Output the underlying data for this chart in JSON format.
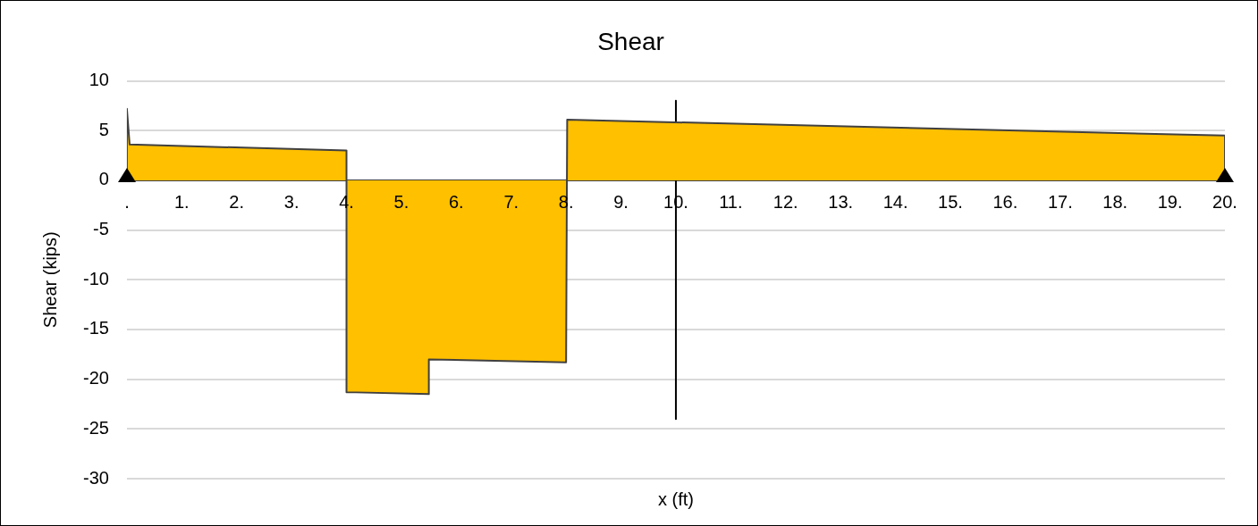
{
  "chart_data": {
    "type": "area",
    "title": "Shear",
    "xlabel": "x (ft)",
    "ylabel": "Shear (kips)",
    "series": [
      {
        "color": "#ffc000",
        "x": [
          0,
          0,
          0.05,
          4,
          4,
          5.5,
          5.5,
          8,
          8.02,
          20,
          20
        ],
        "values": [
          0,
          7.2,
          3.6,
          3.0,
          -21.3,
          -21.5,
          -18.0,
          -18.3,
          6.1,
          4.5,
          0
        ]
      },
      {
        "type": "line",
        "color": "#000000",
        "x": [
          10,
          10
        ],
        "values": [
          8,
          -24
        ]
      }
    ],
    "xlim": [
      0,
      20
    ],
    "ylim": [
      -30,
      10
    ],
    "xticks": [
      {
        "value": 0,
        "label": "."
      },
      {
        "value": 1,
        "label": "1."
      },
      {
        "value": 2,
        "label": "2."
      },
      {
        "value": 3,
        "label": "3."
      },
      {
        "value": 4,
        "label": "4."
      },
      {
        "value": 5,
        "label": "5."
      },
      {
        "value": 6,
        "label": "6."
      },
      {
        "value": 7,
        "label": "7."
      },
      {
        "value": 8,
        "label": "8."
      },
      {
        "value": 9,
        "label": "9."
      },
      {
        "value": 10,
        "label": "10."
      },
      {
        "value": 11,
        "label": "11."
      },
      {
        "value": 12,
        "label": "12."
      },
      {
        "value": 13,
        "label": "13."
      },
      {
        "value": 14,
        "label": "14."
      },
      {
        "value": 15,
        "label": "15."
      },
      {
        "value": 16,
        "label": "16."
      },
      {
        "value": 17,
        "label": "17."
      },
      {
        "value": 18,
        "label": "18."
      },
      {
        "value": 19,
        "label": "19."
      },
      {
        "value": 20,
        "label": "20."
      }
    ],
    "yticks": [
      -30,
      -25,
      -20,
      -15,
      -10,
      -5,
      0,
      5,
      10
    ],
    "grid": "y",
    "legend": false
  }
}
